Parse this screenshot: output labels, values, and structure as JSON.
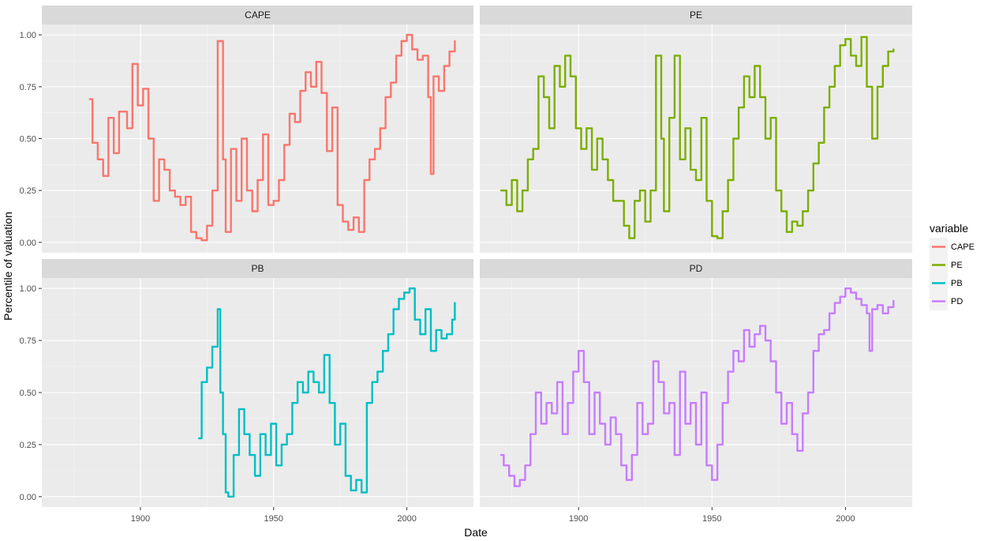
{
  "chart_data": {
    "type": "line",
    "xlabel": "Date",
    "ylabel": "Percentile of valuation",
    "xlim": [
      1863,
      2025
    ],
    "ylim": [
      -0.05,
      1.05
    ],
    "x_ticks": [
      1900,
      1950,
      2000
    ],
    "x_tick_labels": [
      "1900",
      "1950",
      "2000"
    ],
    "y_ticks": [
      0,
      0.25,
      0.5,
      0.75,
      1
    ],
    "y_tick_labels": [
      "0.00",
      "0.25",
      "0.50",
      "0.75",
      "1.00"
    ],
    "grid": true,
    "legend": {
      "title": "variable",
      "placement": "right",
      "entries": [
        "CAPE",
        "PE",
        "PB",
        "PD"
      ]
    },
    "panels": [
      {
        "name": "CAPE",
        "color": "#F8766D",
        "x": [
          1881,
          1882,
          1884,
          1886,
          1888,
          1890,
          1892,
          1895,
          1897,
          1899,
          1901,
          1903,
          1905,
          1907,
          1909,
          1911,
          1913,
          1915,
          1917,
          1919,
          1921,
          1923,
          1925,
          1927,
          1929,
          1931,
          1932,
          1934,
          1936,
          1938,
          1940,
          1942,
          1944,
          1946,
          1948,
          1950,
          1952,
          1954,
          1956,
          1958,
          1960,
          1962,
          1964,
          1966,
          1968,
          1970,
          1972,
          1974,
          1976,
          1978,
          1980,
          1982,
          1984,
          1986,
          1988,
          1990,
          1992,
          1994,
          1996,
          1998,
          2000,
          2002,
          2004,
          2006,
          2008,
          2009,
          2010,
          2012,
          2014,
          2016,
          2018
        ],
        "values": [
          0.69,
          0.48,
          0.4,
          0.32,
          0.6,
          0.43,
          0.63,
          0.55,
          0.86,
          0.66,
          0.74,
          0.5,
          0.2,
          0.4,
          0.35,
          0.25,
          0.22,
          0.18,
          0.22,
          0.05,
          0.02,
          0.01,
          0.08,
          0.25,
          0.97,
          0.4,
          0.05,
          0.45,
          0.2,
          0.5,
          0.25,
          0.15,
          0.3,
          0.52,
          0.18,
          0.2,
          0.3,
          0.47,
          0.62,
          0.58,
          0.73,
          0.82,
          0.75,
          0.87,
          0.72,
          0.44,
          0.65,
          0.18,
          0.1,
          0.06,
          0.12,
          0.05,
          0.3,
          0.4,
          0.45,
          0.55,
          0.7,
          0.77,
          0.9,
          0.97,
          1.0,
          0.93,
          0.88,
          0.9,
          0.7,
          0.33,
          0.8,
          0.73,
          0.85,
          0.92,
          0.97
        ]
      },
      {
        "name": "PE",
        "color": "#7CAE00",
        "x": [
          1871,
          1873,
          1875,
          1877,
          1879,
          1881,
          1883,
          1885,
          1887,
          1889,
          1891,
          1893,
          1895,
          1897,
          1899,
          1901,
          1903,
          1905,
          1907,
          1909,
          1911,
          1913,
          1915,
          1917,
          1919,
          1921,
          1923,
          1925,
          1927,
          1929,
          1931,
          1932,
          1934,
          1936,
          1938,
          1940,
          1942,
          1944,
          1946,
          1948,
          1950,
          1952,
          1954,
          1956,
          1958,
          1960,
          1962,
          1964,
          1966,
          1968,
          1970,
          1972,
          1974,
          1976,
          1978,
          1980,
          1982,
          1984,
          1986,
          1988,
          1990,
          1992,
          1994,
          1996,
          1998,
          2000,
          2002,
          2004,
          2006,
          2008,
          2010,
          2012,
          2014,
          2016,
          2018
        ],
        "values": [
          0.25,
          0.18,
          0.3,
          0.15,
          0.25,
          0.4,
          0.45,
          0.8,
          0.7,
          0.55,
          0.85,
          0.75,
          0.9,
          0.8,
          0.55,
          0.45,
          0.55,
          0.35,
          0.5,
          0.4,
          0.3,
          0.2,
          0.2,
          0.08,
          0.02,
          0.2,
          0.25,
          0.1,
          0.25,
          0.9,
          0.5,
          0.15,
          0.6,
          0.9,
          0.4,
          0.55,
          0.35,
          0.3,
          0.6,
          0.2,
          0.03,
          0.02,
          0.15,
          0.3,
          0.5,
          0.65,
          0.8,
          0.7,
          0.85,
          0.7,
          0.5,
          0.6,
          0.25,
          0.15,
          0.05,
          0.1,
          0.08,
          0.15,
          0.25,
          0.38,
          0.48,
          0.65,
          0.75,
          0.85,
          0.95,
          0.98,
          0.9,
          0.85,
          0.99,
          0.75,
          0.5,
          0.75,
          0.85,
          0.92,
          0.93
        ]
      },
      {
        "name": "PB",
        "color": "#00BFC4",
        "x": [
          1922,
          1923,
          1925,
          1927,
          1929,
          1930,
          1931,
          1932,
          1933,
          1935,
          1937,
          1939,
          1941,
          1943,
          1945,
          1947,
          1949,
          1951,
          1953,
          1955,
          1957,
          1959,
          1961,
          1963,
          1965,
          1967,
          1969,
          1971,
          1973,
          1975,
          1977,
          1979,
          1981,
          1983,
          1985,
          1987,
          1989,
          1991,
          1993,
          1995,
          1997,
          1999,
          2001,
          2003,
          2005,
          2007,
          2009,
          2011,
          2013,
          2015,
          2017,
          2018
        ],
        "values": [
          0.28,
          0.55,
          0.62,
          0.72,
          0.9,
          0.5,
          0.3,
          0.02,
          0.0,
          0.2,
          0.42,
          0.3,
          0.2,
          0.1,
          0.3,
          0.2,
          0.35,
          0.15,
          0.25,
          0.3,
          0.45,
          0.55,
          0.5,
          0.6,
          0.55,
          0.5,
          0.68,
          0.45,
          0.25,
          0.35,
          0.1,
          0.03,
          0.08,
          0.02,
          0.45,
          0.55,
          0.6,
          0.7,
          0.78,
          0.9,
          0.95,
          0.98,
          1.0,
          0.85,
          0.78,
          0.9,
          0.7,
          0.8,
          0.76,
          0.78,
          0.85,
          0.93
        ]
      },
      {
        "name": "PD",
        "color": "#C77CFF",
        "x": [
          1871,
          1872,
          1874,
          1876,
          1878,
          1880,
          1882,
          1884,
          1886,
          1888,
          1890,
          1892,
          1894,
          1896,
          1898,
          1900,
          1902,
          1904,
          1906,
          1908,
          1910,
          1912,
          1914,
          1916,
          1918,
          1920,
          1922,
          1924,
          1926,
          1928,
          1930,
          1932,
          1934,
          1936,
          1938,
          1940,
          1942,
          1944,
          1946,
          1948,
          1950,
          1952,
          1954,
          1956,
          1958,
          1960,
          1962,
          1964,
          1966,
          1968,
          1970,
          1972,
          1974,
          1976,
          1978,
          1980,
          1982,
          1984,
          1986,
          1988,
          1990,
          1992,
          1994,
          1996,
          1998,
          2000,
          2002,
          2004,
          2006,
          2008,
          2009,
          2010,
          2012,
          2014,
          2016,
          2018
        ],
        "values": [
          0.2,
          0.15,
          0.1,
          0.05,
          0.08,
          0.15,
          0.3,
          0.5,
          0.35,
          0.45,
          0.4,
          0.55,
          0.3,
          0.45,
          0.6,
          0.7,
          0.55,
          0.3,
          0.5,
          0.35,
          0.25,
          0.38,
          0.3,
          0.15,
          0.08,
          0.2,
          0.45,
          0.3,
          0.35,
          0.65,
          0.55,
          0.4,
          0.45,
          0.2,
          0.6,
          0.35,
          0.45,
          0.25,
          0.5,
          0.15,
          0.08,
          0.25,
          0.45,
          0.6,
          0.7,
          0.65,
          0.8,
          0.72,
          0.78,
          0.82,
          0.75,
          0.65,
          0.5,
          0.35,
          0.45,
          0.3,
          0.22,
          0.4,
          0.5,
          0.7,
          0.78,
          0.8,
          0.88,
          0.93,
          0.96,
          1.0,
          0.98,
          0.95,
          0.92,
          0.88,
          0.7,
          0.9,
          0.92,
          0.88,
          0.91,
          0.94
        ]
      }
    ]
  }
}
